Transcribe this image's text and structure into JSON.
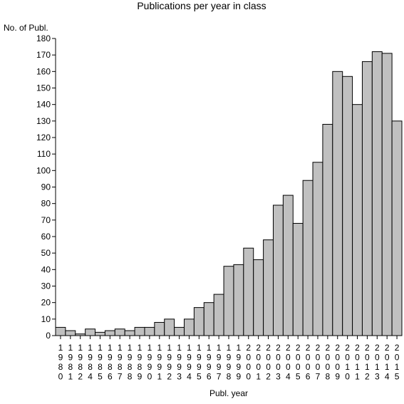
{
  "chart_data": {
    "type": "bar",
    "title": "Publications per year in class",
    "ylabel": "No. of Publ.",
    "xlabel": "Publ. year",
    "ylim": [
      0,
      180
    ],
    "ytick_step": 10,
    "grid": false,
    "categories": [
      "1980",
      "1981",
      "1982",
      "1984",
      "1985",
      "1986",
      "1987",
      "1988",
      "1989",
      "1990",
      "1991",
      "1992",
      "1993",
      "1994",
      "1995",
      "1996",
      "1997",
      "1998",
      "1999",
      "2000",
      "2001",
      "2002",
      "2003",
      "2004",
      "2005",
      "2006",
      "2007",
      "2008",
      "2009",
      "2010",
      "2011",
      "2012",
      "2013",
      "2014",
      "2015"
    ],
    "values": [
      5,
      3,
      1,
      4,
      2,
      3,
      4,
      3,
      5,
      5,
      8,
      10,
      5,
      10,
      17,
      20,
      25,
      42,
      43,
      53,
      46,
      58,
      79,
      85,
      68,
      94,
      105,
      128,
      160,
      157,
      140,
      166,
      172,
      171,
      130
    ],
    "bar_color": "#c0c0c0"
  }
}
